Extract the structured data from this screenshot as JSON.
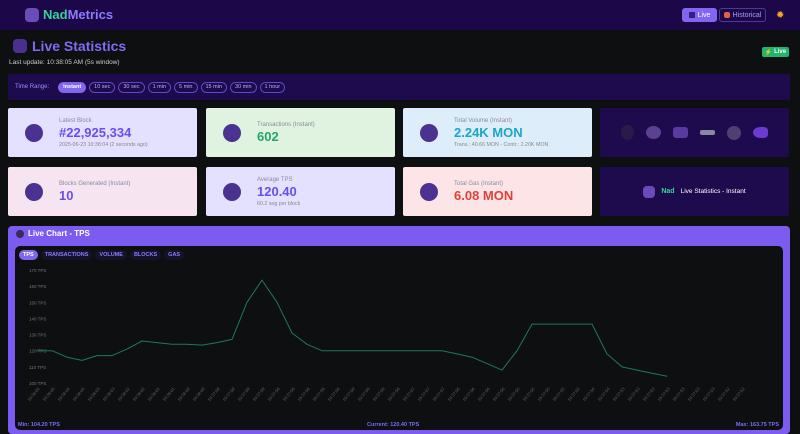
{
  "header": {
    "brand_part1": "Nad",
    "brand_part2": "Metrics",
    "live_label": "Live",
    "historical_label": "Historical",
    "theme_icon": "sun-icon"
  },
  "page": {
    "title": "Live Statistics",
    "last_update": "Last update: 10:38:05 AM  (5s window)",
    "live_badge": "Live"
  },
  "time_range": {
    "label": "Time Range:",
    "options": [
      "Instant",
      "10 sec",
      "30 sec",
      "1 min",
      "5 min",
      "15 min",
      "30 min",
      "1 hour"
    ],
    "selected": "Instant"
  },
  "cards": [
    {
      "label": "Latest Block",
      "value": "#22,925,334",
      "sub": "2025-06-23 10:38:04 (2 seconds ago)",
      "color": "#6a4df0",
      "bg": "#e4e0ff"
    },
    {
      "label": "Transactions (Instant)",
      "value": "602",
      "sub": "",
      "color": "#20a86a",
      "bg": "#e0f3e0"
    },
    {
      "label": "Total Volume (Instant)",
      "value": "2.24K MON",
      "sub": "Trans.: 40.66 MON - Contr.: 2.20K MON",
      "color": "#1aa6c8",
      "bg": "#ddeefa"
    },
    {
      "label": "Blocks Generated (Instant)",
      "value": "10",
      "sub": "",
      "color": "#6a4df0",
      "bg": "#f6e4f0"
    },
    {
      "label": "Average TPS",
      "value": "120.40",
      "sub": "60.2 avg per block",
      "color": "#6a4df0",
      "bg": "#e4e0ff"
    },
    {
      "label": "Total Gas (Instant)",
      "value": "6.08 MON",
      "sub": "",
      "color": "#e0403a",
      "bg": "#fde4e6"
    }
  ],
  "banner": {
    "brand": "Nad",
    "text": "Live Statistics - Instant"
  },
  "chart": {
    "title": "Live Chart - TPS",
    "tabs": [
      "TPS",
      "TRANSACTIONS",
      "VOLUME",
      "BLOCKS",
      "GAS"
    ],
    "selected_tab": "TPS",
    "min": "Min: 104.20 TPS",
    "current": "Current: 120.40 TPS",
    "max": "Max: 163.75 TPS"
  },
  "chart_data": {
    "type": "line",
    "ylim": [
      100,
      170
    ],
    "y_ticks": [
      "170 TPS",
      "160 TPS",
      "150 TPS",
      "140 TPS",
      "130 TPS",
      "120 TPS",
      "110 TPS",
      "100 TPS"
    ],
    "y_tick_values": [
      170,
      160,
      150,
      140,
      130,
      120,
      110,
      100
    ],
    "grid": false,
    "line_color": "#1f7a52",
    "x": [
      "10:38:05",
      "10:38:05",
      "10:38:04",
      "10:38:04",
      "10:38:03",
      "10:38:03",
      "10:38:02",
      "10:38:02",
      "10:38:01",
      "10:38:01",
      "10:38:00",
      "10:38:00",
      "10:37:59",
      "10:37:59",
      "10:37:59",
      "10:37:59",
      "10:37:58",
      "10:37:58",
      "10:37:58",
      "10:37:58",
      "10:37:58",
      "10:37:58",
      "10:37:58",
      "10:37:58",
      "10:37:58",
      "10:37:57",
      "10:37:57",
      "10:37:57",
      "10:37:56",
      "10:37:56",
      "10:37:56",
      "10:37:56",
      "10:37:55",
      "10:37:55",
      "10:37:55",
      "10:37:55",
      "10:37:55",
      "10:37:54",
      "10:37:54",
      "10:37:53",
      "10:37:53",
      "10:37:53",
      "10:37:53",
      "10:37:53",
      "10:37:53",
      "10:37:53",
      "10:37:52",
      "10:37:52"
    ],
    "values": [
      120,
      120,
      116,
      114,
      117,
      117,
      121,
      126,
      125,
      124,
      124,
      123.5,
      125,
      127,
      150,
      163.75,
      150,
      131,
      124,
      120,
      120,
      120,
      120,
      120,
      120,
      120,
      120,
      120,
      118,
      116,
      112,
      108,
      120,
      136.5,
      136.5,
      136.5,
      136.5,
      136.5,
      118,
      110,
      108,
      106,
      104.2,
      null,
      null,
      null,
      null,
      null
    ]
  }
}
